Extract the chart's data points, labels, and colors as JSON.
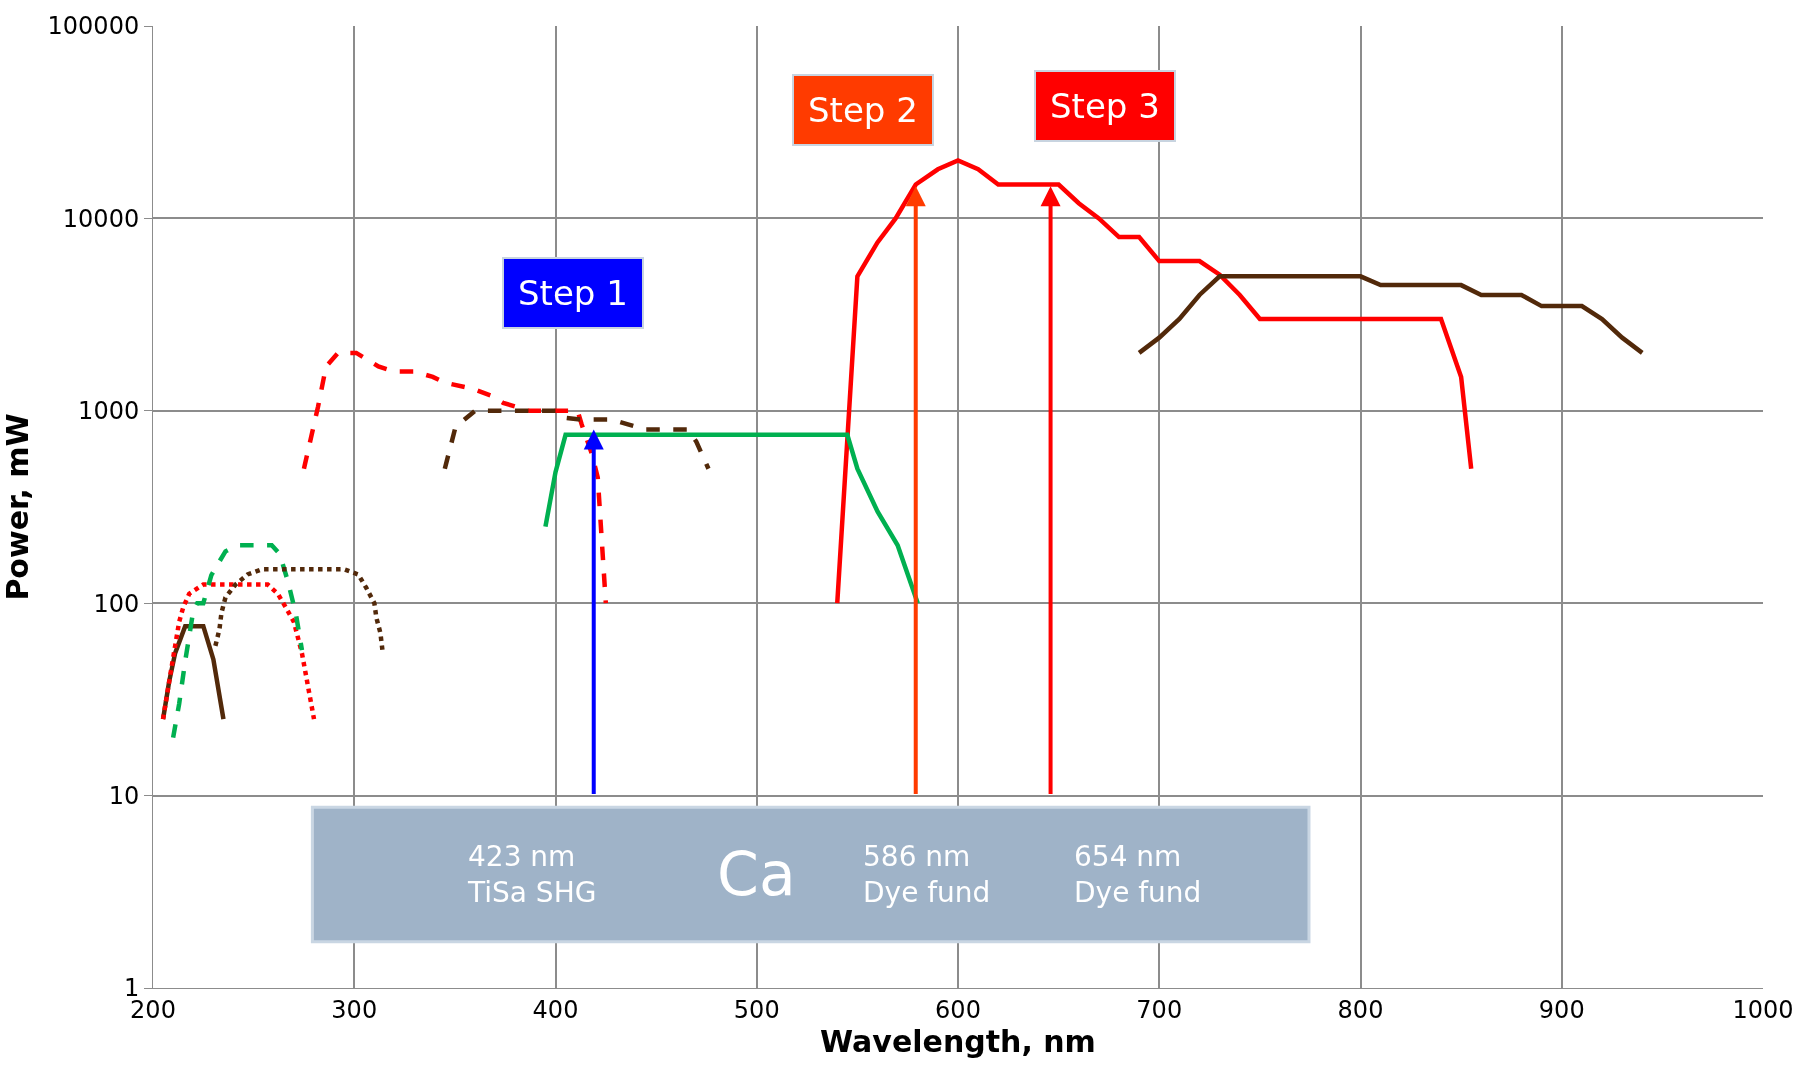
{
  "chart_data": {
    "type": "line",
    "xlabel": "Wavelength, nm",
    "ylabel": "Power, mW",
    "log": "y",
    "grid": true,
    "marker": "none",
    "xlim": [
      200,
      1000
    ],
    "xticks": [
      200,
      300,
      400,
      500,
      600,
      700,
      800,
      900,
      1000
    ],
    "ylim": [
      1,
      100000
    ],
    "yticks": [
      1,
      10,
      100,
      1000,
      10000,
      100000
    ],
    "series": [
      {
        "color": "#ff0000",
        "line_style": "solid",
        "x": [
          540,
          550,
          560,
          569,
          579,
          590,
          600,
          610,
          620,
          650,
          660,
          670,
          680,
          690,
          700,
          720,
          730,
          740,
          750,
          840,
          850,
          855
        ],
        "values": [
          100,
          5000,
          7500,
          10000,
          15000,
          18000,
          20000,
          18000,
          15000,
          15000,
          12000,
          10000,
          8000,
          8000,
          6000,
          6000,
          5100,
          4000,
          3000,
          3000,
          1500,
          500
        ]
      },
      {
        "color": "#52290a",
        "line_style": "solid",
        "x": [
          690,
          700,
          710,
          720,
          730,
          800,
          810,
          850,
          860,
          880,
          890,
          910,
          920,
          930,
          940
        ],
        "values": [
          2000,
          2400,
          3000,
          4000,
          5000,
          5000,
          4500,
          4500,
          4000,
          4000,
          3500,
          3500,
          3000,
          2400,
          2000
        ]
      },
      {
        "color": "#00b050",
        "line_style": "solid",
        "x": [
          395,
          400,
          405,
          545,
          550,
          560,
          570,
          580
        ],
        "values": [
          250,
          480,
          750,
          750,
          500,
          300,
          200,
          100
        ]
      },
      {
        "color": "#ff0000",
        "line_style": "dashed",
        "x": [
          275,
          282,
          286,
          292,
          301,
          312,
          320,
          330,
          339,
          345,
          359,
          368,
          374,
          387,
          405,
          411,
          413,
          418,
          421,
          425
        ],
        "values": [
          500,
          1050,
          1700,
          2000,
          2000,
          1700,
          1600,
          1600,
          1500,
          1400,
          1300,
          1200,
          1100,
          1000,
          1000,
          1000,
          850,
          600,
          450,
          100
        ]
      },
      {
        "color": "#52290a",
        "line_style": "dashed",
        "x": [
          345,
          350,
          353,
          360,
          400,
          405,
          413,
          428,
          436,
          445,
          466,
          470,
          476
        ],
        "values": [
          500,
          800,
          870,
          1000,
          1000,
          920,
          900,
          900,
          850,
          800,
          800,
          690,
          500
        ]
      },
      {
        "color": "#52290a",
        "line_style": "solid",
        "x": [
          205,
          208,
          211,
          216,
          225,
          230,
          235
        ],
        "values": [
          25,
          39,
          55,
          76,
          76,
          51,
          25
        ]
      },
      {
        "color": "#ff0000",
        "line_style": "dotted",
        "x": [
          205,
          209,
          213,
          215,
          218,
          225,
          233,
          257,
          262,
          266,
          270,
          274,
          280
        ],
        "values": [
          25,
          45,
          80,
          95,
          112,
          125,
          125,
          125,
          112,
          95,
          80,
          55,
          25
        ]
      },
      {
        "color": "#00b050",
        "line_style": "dashed",
        "x": [
          210,
          213,
          216,
          220,
          222,
          225,
          229,
          236,
          242,
          259,
          263,
          267,
          271,
          274
        ],
        "values": [
          20,
          30,
          50,
          91,
          100,
          100,
          140,
          186,
          200,
          200,
          180,
          130,
          88,
          57
        ]
      },
      {
        "color": "#52290a",
        "line_style": "dotted",
        "x": [
          231,
          233,
          234,
          236,
          241,
          247,
          254,
          295,
          302,
          306,
          310,
          311,
          313,
          314
        ],
        "values": [
          60,
          73,
          89,
          107,
          125,
          141,
          150,
          150,
          141,
          120,
          100,
          84,
          70,
          57
        ]
      }
    ],
    "annotations": [
      "Step 1",
      "Step 2",
      "Step 3",
      "423 nm\nTiSa SHG",
      "Ca",
      "586 nm\nDye fund",
      "654 nm\nDye fund"
    ]
  }
}
